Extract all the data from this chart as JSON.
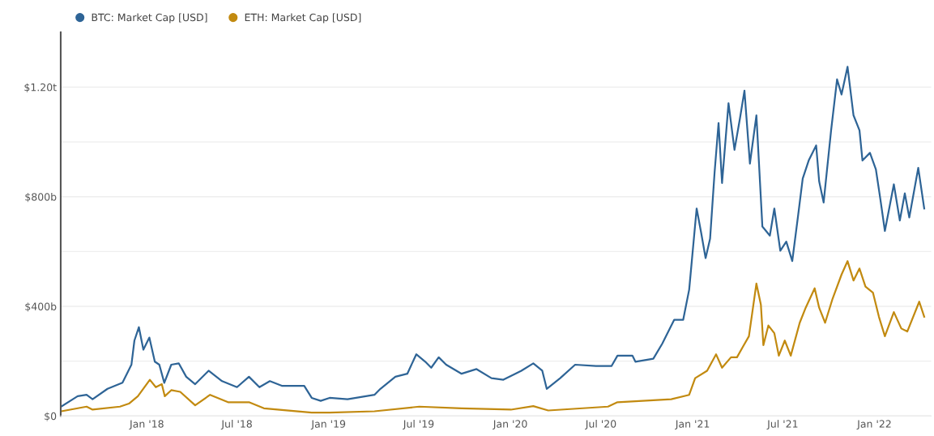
{
  "chart_data": {
    "type": "line",
    "series": [
      {
        "name": "BTC: Market Cap [USD]",
        "color": "#2e6496",
        "x": [
          "2017-07-13",
          "2017-08-15",
          "2017-09-02",
          "2017-09-14",
          "2017-10-14",
          "2017-11-13",
          "2017-12-01",
          "2017-12-07",
          "2017-12-16",
          "2017-12-25",
          "2018-01-06",
          "2018-01-17",
          "2018-01-26",
          "2018-02-05",
          "2018-02-19",
          "2018-03-06",
          "2018-03-21",
          "2018-04-08",
          "2018-05-05",
          "2018-06-01",
          "2018-07-01",
          "2018-07-25",
          "2018-08-15",
          "2018-09-05",
          "2018-09-29",
          "2018-11-13",
          "2018-11-28",
          "2018-12-16",
          "2019-01-03",
          "2019-02-08",
          "2019-04-03",
          "2019-04-15",
          "2019-05-15",
          "2019-06-08",
          "2019-06-26",
          "2019-07-14",
          "2019-07-26",
          "2019-08-10",
          "2019-08-25",
          "2019-09-25",
          "2019-10-25",
          "2019-11-24",
          "2019-12-18",
          "2020-01-23",
          "2020-02-16",
          "2020-03-05",
          "2020-03-14",
          "2020-04-10",
          "2020-05-10",
          "2020-06-21",
          "2020-07-22",
          "2020-08-03",
          "2020-09-02",
          "2020-09-08",
          "2020-10-14",
          "2020-11-01",
          "2020-11-25",
          "2020-12-13",
          "2020-12-25",
          "2021-01-09",
          "2021-01-18",
          "2021-01-27",
          "2021-02-05",
          "2021-02-14",
          "2021-02-22",
          "2021-03-01",
          "2021-03-14",
          "2021-03-26",
          "2021-04-06",
          "2021-04-15",
          "2021-04-26",
          "2021-05-09",
          "2021-05-21",
          "2021-06-05",
          "2021-06-14",
          "2021-06-26",
          "2021-07-08",
          "2021-07-20",
          "2021-08-01",
          "2021-08-10",
          "2021-08-22",
          "2021-09-06",
          "2021-09-12",
          "2021-09-21",
          "2021-10-06",
          "2021-10-18",
          "2021-10-27",
          "2021-11-08",
          "2021-11-20",
          "2021-12-02",
          "2021-12-08",
          "2021-12-23",
          "2022-01-04",
          "2022-01-13",
          "2022-01-22",
          "2022-02-09",
          "2022-02-21",
          "2022-03-03",
          "2022-03-12",
          "2022-03-30",
          "2022-04-11"
        ],
        "values": [
          34000000000.0,
          72000000000.0,
          77000000000.0,
          61000000000.0,
          99000000000.0,
          121000000000.0,
          187000000000.0,
          275000000000.0,
          324000000000.0,
          242000000000.0,
          286000000000.0,
          198000000000.0,
          187000000000.0,
          121000000000.0,
          187000000000.0,
          192000000000.0,
          143000000000.0,
          116000000000.0,
          165000000000.0,
          127000000000.0,
          105000000000.0,
          143000000000.0,
          105000000000.0,
          127000000000.0,
          110000000000.0,
          110000000000.0,
          66000000000.0,
          55000000000.0,
          66000000000.0,
          61000000000.0,
          77000000000.0,
          99000000000.0,
          143000000000.0,
          154000000000.0,
          225000000000.0,
          198000000000.0,
          176000000000.0,
          214000000000.0,
          187000000000.0,
          154000000000.0,
          171000000000.0,
          138000000000.0,
          132000000000.0,
          165000000000.0,
          192000000000.0,
          165000000000.0,
          99000000000.0,
          138000000000.0,
          187000000000.0,
          182000000000.0,
          182000000000.0,
          220000000000.0,
          220000000000.0,
          198000000000.0,
          209000000000.0,
          264000000000.0,
          351000000000.0,
          351000000000.0,
          461000000000.0,
          757000000000.0,
          669000000000.0,
          576000000000.0,
          647000000000.0,
          888000000000.0,
          1069000000000.0,
          850000000000.0,
          1141000000000.0,
          971000000000.0,
          1086000000000.0,
          1187000000000.0,
          921000000000.0,
          1097000000000.0,
          691000000000.0,
          658000000000.0,
          757000000000.0,
          603000000000.0,
          636000000000.0,
          565000000000.0,
          735000000000.0,
          866000000000.0,
          932000000000.0,
          987000000000.0,
          856000000000.0,
          779000000000.0,
          1042000000000.0,
          1228000000000.0,
          1173000000000.0,
          1274000000000.0,
          1097000000000.0,
          1042000000000.0,
          932000000000.0,
          960000000000.0,
          899000000000.0,
          790000000000.0,
          675000000000.0,
          845000000000.0,
          713000000000.0,
          812000000000.0,
          724000000000.0,
          905000000000.0,
          757000000000.0
        ]
      },
      {
        "name": "ETH: Market Cap [USD]",
        "color": "#c28a10",
        "x": [
          "2017-07-13",
          "2017-09-02",
          "2017-09-14",
          "2017-11-08",
          "2017-11-26",
          "2017-12-14",
          "2018-01-07",
          "2018-01-19",
          "2018-01-31",
          "2018-02-06",
          "2018-02-19",
          "2018-03-09",
          "2018-04-08",
          "2018-05-08",
          "2018-06-13",
          "2018-07-25",
          "2018-08-24",
          "2018-11-28",
          "2019-01-03",
          "2019-04-03",
          "2019-07-02",
          "2019-09-25",
          "2020-01-02",
          "2020-02-16",
          "2020-03-17",
          "2020-07-15",
          "2020-08-03",
          "2020-11-19",
          "2020-12-25",
          "2021-01-06",
          "2021-01-30",
          "2021-02-17",
          "2021-03-01",
          "2021-03-19",
          "2021-03-31",
          "2021-04-12",
          "2021-04-24",
          "2021-05-09",
          "2021-05-18",
          "2021-05-23",
          "2021-06-02",
          "2021-06-14",
          "2021-06-23",
          "2021-07-05",
          "2021-07-17",
          "2021-08-04",
          "2021-08-16",
          "2021-09-03",
          "2021-09-12",
          "2021-09-24",
          "2021-10-09",
          "2021-10-27",
          "2021-11-08",
          "2021-11-20",
          "2021-12-02",
          "2021-12-14",
          "2021-12-29",
          "2022-01-10",
          "2022-01-22",
          "2022-02-09",
          "2022-02-24",
          "2022-03-08",
          "2022-04-01",
          "2022-04-11"
        ],
        "values": [
          17000000000.0,
          34000000000.0,
          23000000000.0,
          34000000000.0,
          45000000000.0,
          72000000000.0,
          132000000000.0,
          105000000000.0,
          116000000000.0,
          72000000000.0,
          94000000000.0,
          88000000000.0,
          39000000000.0,
          77000000000.0,
          50000000000.0,
          50000000000.0,
          28000000000.0,
          12000000000.0,
          12000000000.0,
          17000000000.0,
          34000000000.0,
          28000000000.0,
          23000000000.0,
          36000000000.0,
          20000000000.0,
          34000000000.0,
          50000000000.0,
          61000000000.0,
          77000000000.0,
          138000000000.0,
          165000000000.0,
          225000000000.0,
          176000000000.0,
          214000000000.0,
          214000000000.0,
          253000000000.0,
          291000000000.0,
          483000000000.0,
          406000000000.0,
          258000000000.0,
          330000000000.0,
          302000000000.0,
          220000000000.0,
          275000000000.0,
          220000000000.0,
          340000000000.0,
          395000000000.0,
          466000000000.0,
          395000000000.0,
          340000000000.0,
          428000000000.0,
          516000000000.0,
          565000000000.0,
          494000000000.0,
          538000000000.0,
          472000000000.0,
          450000000000.0,
          362000000000.0,
          291000000000.0,
          379000000000.0,
          319000000000.0,
          308000000000.0,
          417000000000.0,
          362000000000.0
        ]
      }
    ],
    "xlim": [
      "2017-07-12",
      "2022-04-25"
    ],
    "xticks": [
      {
        "value": "2018-01-01",
        "label": "Jan '18"
      },
      {
        "value": "2018-07-01",
        "label": "Jul '18"
      },
      {
        "value": "2019-01-01",
        "label": "Jan '19"
      },
      {
        "value": "2019-07-01",
        "label": "Jul '19"
      },
      {
        "value": "2020-01-01",
        "label": "Jan '20"
      },
      {
        "value": "2020-07-01",
        "label": "Jul '20"
      },
      {
        "value": "2021-01-01",
        "label": "Jan '21"
      },
      {
        "value": "2021-07-01",
        "label": "Jul '21"
      },
      {
        "value": "2022-01-01",
        "label": "Jan '22"
      }
    ],
    "ylim": [
      0,
      1400000000000.0
    ],
    "yticks": [
      {
        "value": 0,
        "label": "$0"
      },
      {
        "value": 200000000000.0,
        "label": null
      },
      {
        "value": 400000000000.0,
        "label": "$400b"
      },
      {
        "value": 600000000000.0,
        "label": null
      },
      {
        "value": 800000000000.0,
        "label": "$800b"
      },
      {
        "value": 1000000000000.0,
        "label": null
      },
      {
        "value": 1200000000000.0,
        "label": "$1.20t"
      }
    ],
    "grid": "y",
    "legend": "top left"
  }
}
